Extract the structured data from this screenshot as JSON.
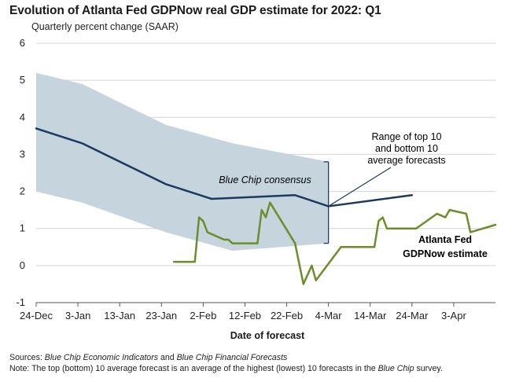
{
  "title": "Evolution of Atlanta Fed GDPNow real GDP estimate for 2022: Q1",
  "subtitle": "Quarterly percent change (SAAR)",
  "footer": {
    "sources_label": "Sources:",
    "sources_text_1": "Blue Chip Economic Indicators",
    "sources_text_2": " and ",
    "sources_text_3": "Blue Chip Financial Forecasts",
    "note_label": "Note:",
    "note_text_1": " The top (bottom) 10 average forecast is an average of the highest (lowest) 10 forecasts in the ",
    "note_text_2": "Blue Chip",
    "note_text_3": " survey."
  },
  "colors": {
    "band": "#c5d4dd",
    "consensus": "#1f3a5f",
    "gdpnow": "#6b8e2b",
    "range_annotation": "#1f3a5f",
    "grid": "#d4d4d4"
  },
  "chart_data": {
    "type": "line",
    "title": "Evolution of Atlanta Fed GDPNow real GDP estimate for 2022: Q1",
    "subtitle": "Quarterly percent change (SAAR)",
    "xlabel": "Date of forecast",
    "ylabel": "",
    "ylim": [
      -1,
      6
    ],
    "yticks": [
      -1,
      0,
      1,
      2,
      3,
      4,
      5,
      6
    ],
    "xlim": [
      "2021-12-24",
      "2022-04-13"
    ],
    "xticks": [
      {
        "date": "2021-12-24",
        "label": "24-Dec"
      },
      {
        "date": "2022-01-03",
        "label": "3-Jan"
      },
      {
        "date": "2022-01-13",
        "label": "13-Jan"
      },
      {
        "date": "2022-01-23",
        "label": "23-Jan"
      },
      {
        "date": "2022-02-02",
        "label": "2-Feb"
      },
      {
        "date": "2022-02-12",
        "label": "12-Feb"
      },
      {
        "date": "2022-02-22",
        "label": "22-Feb"
      },
      {
        "date": "2022-03-04",
        "label": "4-Mar"
      },
      {
        "date": "2022-03-14",
        "label": "14-Mar"
      },
      {
        "date": "2022-03-24",
        "label": "24-Mar"
      },
      {
        "date": "2022-04-03",
        "label": "3-Apr"
      }
    ],
    "grid": "horizontal",
    "band": {
      "upper": [
        {
          "x": "2021-12-24",
          "y": 5.2
        },
        {
          "x": "2022-01-04",
          "y": 4.9
        },
        {
          "x": "2022-01-24",
          "y": 3.8
        },
        {
          "x": "2022-02-09",
          "y": 3.3
        },
        {
          "x": "2022-03-04",
          "y": 2.8
        }
      ],
      "lower": [
        {
          "x": "2021-12-24",
          "y": 2.0
        },
        {
          "x": "2022-01-04",
          "y": 1.7
        },
        {
          "x": "2022-01-24",
          "y": 0.9
        },
        {
          "x": "2022-02-09",
          "y": 0.4
        },
        {
          "x": "2022-03-04",
          "y": 0.6
        }
      ]
    },
    "series": [
      {
        "name": "Blue Chip consensus",
        "values": [
          {
            "x": "2021-12-24",
            "y": 3.7
          },
          {
            "x": "2022-01-04",
            "y": 3.3
          },
          {
            "x": "2022-01-24",
            "y": 2.2
          },
          {
            "x": "2022-02-04",
            "y": 1.8
          },
          {
            "x": "2022-02-24",
            "y": 1.9
          },
          {
            "x": "2022-03-04",
            "y": 1.6
          },
          {
            "x": "2022-03-24",
            "y": 1.9
          }
        ]
      },
      {
        "name": "Atlanta Fed GDPNow estimate",
        "values": [
          {
            "x": "2022-01-26",
            "y": 0.1
          },
          {
            "x": "2022-01-31",
            "y": 0.1
          },
          {
            "x": "2022-02-01",
            "y": 1.3
          },
          {
            "x": "2022-02-02",
            "y": 1.2
          },
          {
            "x": "2022-02-03",
            "y": 0.9
          },
          {
            "x": "2022-02-07",
            "y": 0.7
          },
          {
            "x": "2022-02-08",
            "y": 0.7
          },
          {
            "x": "2022-02-09",
            "y": 0.6
          },
          {
            "x": "2022-02-15",
            "y": 0.6
          },
          {
            "x": "2022-02-16",
            "y": 1.5
          },
          {
            "x": "2022-02-17",
            "y": 1.3
          },
          {
            "x": "2022-02-18",
            "y": 1.7
          },
          {
            "x": "2022-02-24",
            "y": 0.6
          },
          {
            "x": "2022-02-26",
            "y": -0.5
          },
          {
            "x": "2022-02-28",
            "y": 0.0
          },
          {
            "x": "2022-03-01",
            "y": -0.4
          },
          {
            "x": "2022-03-07",
            "y": 0.5
          },
          {
            "x": "2022-03-15",
            "y": 0.5
          },
          {
            "x": "2022-03-16",
            "y": 1.2
          },
          {
            "x": "2022-03-17",
            "y": 1.3
          },
          {
            "x": "2022-03-18",
            "y": 1.0
          },
          {
            "x": "2022-03-23",
            "y": 1.0
          },
          {
            "x": "2022-03-25",
            "y": 1.0
          },
          {
            "x": "2022-03-30",
            "y": 1.4
          },
          {
            "x": "2022-04-01",
            "y": 1.3
          },
          {
            "x": "2022-04-02",
            "y": 1.5
          },
          {
            "x": "2022-04-06",
            "y": 1.4
          },
          {
            "x": "2022-04-07",
            "y": 0.9
          },
          {
            "x": "2022-04-13",
            "y": 1.1
          }
        ]
      }
    ],
    "annotations": {
      "consensus": "Blue Chip consensus",
      "range": [
        "Range of top 10",
        "and bottom 10",
        "average forecasts"
      ],
      "gdpnow": [
        "Atlanta Fed",
        "GDPNow estimate"
      ]
    }
  }
}
